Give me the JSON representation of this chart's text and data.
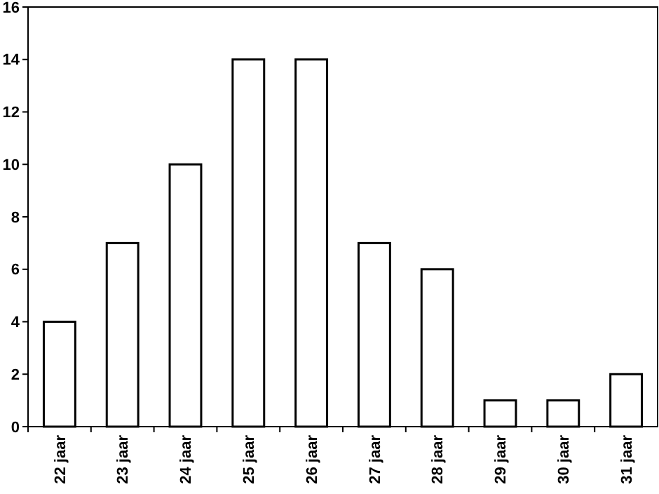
{
  "chart_data": {
    "type": "bar",
    "categories": [
      "22 jaar",
      "23 jaar",
      "24 jaar",
      "25 jaar",
      "26 jaar",
      "27 jaar",
      "28 jaar",
      "29 jaar",
      "30 jaar",
      "31 jaar"
    ],
    "values": [
      4,
      7,
      10,
      14,
      14,
      7,
      6,
      1,
      1,
      2
    ],
    "color": "#ffffff",
    "ylim": [
      0,
      16
    ],
    "yticks": [
      0,
      2,
      4,
      6,
      8,
      10,
      12,
      14,
      16
    ],
    "grid": false
  }
}
